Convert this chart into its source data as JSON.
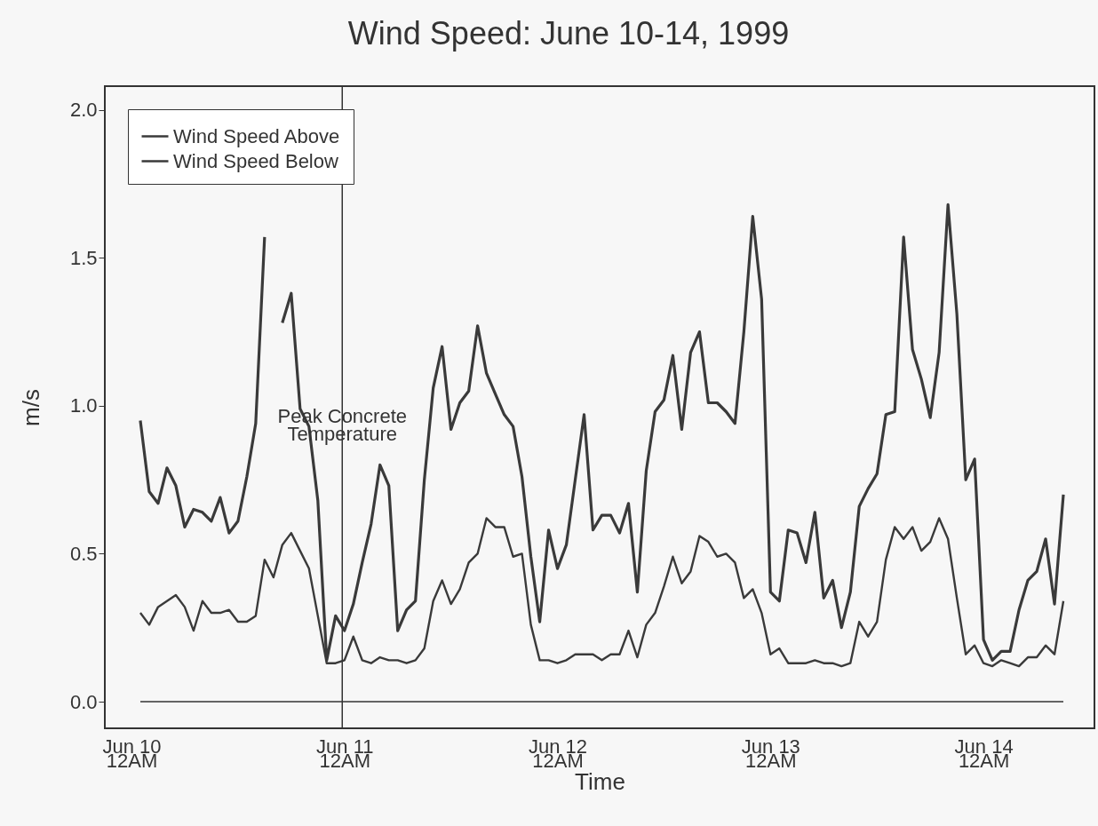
{
  "chart_data": {
    "type": "line",
    "title": "Wind Speed: June 10-14, 1999",
    "xlabel": "Time",
    "ylabel": "m/s",
    "legend": "top left",
    "x": [
      "1999-06-10T01:00",
      "1999-06-10T02:00",
      "1999-06-10T03:00",
      "1999-06-10T04:00",
      "1999-06-10T05:00",
      "1999-06-10T06:00",
      "1999-06-10T07:00",
      "1999-06-10T08:00",
      "1999-06-10T09:00",
      "1999-06-10T10:00",
      "1999-06-10T11:00",
      "1999-06-10T12:00",
      "1999-06-10T13:00",
      "1999-06-10T14:00",
      "1999-06-10T15:00",
      "1999-06-10T16:00",
      "1999-06-10T17:00",
      "1999-06-10T18:00",
      "1999-06-10T19:00",
      "1999-06-10T20:00",
      "1999-06-10T21:00",
      "1999-06-10T22:00",
      "1999-06-10T23:00",
      "1999-06-11T00:00",
      "1999-06-11T01:00",
      "1999-06-11T02:00",
      "1999-06-11T03:00",
      "1999-06-11T04:00",
      "1999-06-11T05:00",
      "1999-06-11T06:00",
      "1999-06-11T07:00",
      "1999-06-11T08:00",
      "1999-06-11T09:00",
      "1999-06-11T10:00",
      "1999-06-11T11:00",
      "1999-06-11T12:00",
      "1999-06-11T13:00",
      "1999-06-11T14:00",
      "1999-06-11T15:00",
      "1999-06-11T16:00",
      "1999-06-11T17:00",
      "1999-06-11T18:00",
      "1999-06-11T19:00",
      "1999-06-11T20:00",
      "1999-06-11T21:00",
      "1999-06-11T22:00",
      "1999-06-11T23:00",
      "1999-06-12T00:00",
      "1999-06-12T01:00",
      "1999-06-12T02:00",
      "1999-06-12T03:00",
      "1999-06-12T04:00",
      "1999-06-12T05:00",
      "1999-06-12T06:00",
      "1999-06-12T07:00",
      "1999-06-12T08:00",
      "1999-06-12T09:00",
      "1999-06-12T10:00",
      "1999-06-12T11:00",
      "1999-06-12T12:00",
      "1999-06-12T13:00",
      "1999-06-12T14:00",
      "1999-06-12T15:00",
      "1999-06-12T16:00",
      "1999-06-12T17:00",
      "1999-06-12T18:00",
      "1999-06-12T19:00",
      "1999-06-12T20:00",
      "1999-06-12T21:00",
      "1999-06-12T22:00",
      "1999-06-12T23:00",
      "1999-06-13T00:00",
      "1999-06-13T01:00",
      "1999-06-13T02:00",
      "1999-06-13T03:00",
      "1999-06-13T04:00",
      "1999-06-13T05:00",
      "1999-06-13T06:00",
      "1999-06-13T07:00",
      "1999-06-13T08:00",
      "1999-06-13T09:00",
      "1999-06-13T10:00",
      "1999-06-13T11:00",
      "1999-06-13T12:00",
      "1999-06-13T13:00",
      "1999-06-13T14:00",
      "1999-06-13T15:00",
      "1999-06-13T16:00",
      "1999-06-13T17:00",
      "1999-06-13T18:00",
      "1999-06-13T19:00",
      "1999-06-13T20:00",
      "1999-06-13T21:00",
      "1999-06-13T22:00",
      "1999-06-13T23:00",
      "1999-06-14T00:00",
      "1999-06-14T01:00",
      "1999-06-14T02:00",
      "1999-06-14T03:00",
      "1999-06-14T04:00",
      "1999-06-14T05:00",
      "1999-06-14T06:00",
      "1999-06-14T07:00",
      "1999-06-14T08:00",
      "1999-06-14T09:00"
    ],
    "series": [
      {
        "name": "Wind Speed Above",
        "color": "#3a3a3a",
        "values": [
          0.95,
          0.71,
          0.67,
          0.79,
          0.73,
          0.59,
          0.65,
          0.64,
          0.61,
          0.69,
          0.57,
          0.61,
          0.76,
          0.94,
          1.57,
          null,
          1.28,
          1.38,
          0.99,
          0.93,
          0.68,
          0.14,
          0.29,
          0.24,
          0.33,
          0.47,
          0.6,
          0.8,
          0.73,
          0.24,
          0.31,
          0.34,
          0.75,
          1.06,
          1.2,
          0.92,
          1.01,
          1.05,
          1.27,
          1.11,
          1.04,
          0.97,
          0.93,
          0.76,
          0.49,
          0.27,
          0.58,
          0.45,
          0.53,
          0.75,
          0.97,
          0.58,
          0.63,
          0.63,
          0.57,
          0.67,
          0.37,
          0.78,
          0.98,
          1.02,
          1.17,
          0.92,
          1.18,
          1.25,
          1.01,
          1.01,
          0.98,
          0.94,
          1.25,
          1.64,
          1.36,
          0.37,
          0.34,
          0.58,
          0.57,
          0.47,
          0.64,
          0.35,
          0.41,
          0.25,
          0.37,
          0.66,
          0.72,
          0.77,
          0.97,
          0.98,
          1.57,
          1.19,
          1.09,
          0.96,
          1.18,
          1.68,
          1.31,
          0.75,
          0.82,
          0.21,
          0.14,
          0.17,
          0.17,
          0.31,
          0.41,
          0.44,
          0.55,
          0.33,
          0.7
        ]
      },
      {
        "name": "Wind Speed Below",
        "color": "#3a3a3a",
        "values": [
          0.3,
          0.26,
          0.32,
          0.34,
          0.36,
          0.32,
          0.24,
          0.34,
          0.3,
          0.3,
          0.31,
          0.27,
          0.27,
          0.29,
          0.48,
          0.42,
          0.53,
          0.57,
          0.51,
          0.45,
          0.29,
          0.13,
          0.13,
          0.14,
          0.22,
          0.14,
          0.13,
          0.15,
          0.14,
          0.14,
          0.13,
          0.14,
          0.18,
          0.34,
          0.41,
          0.33,
          0.38,
          0.47,
          0.5,
          0.62,
          0.59,
          0.59,
          0.49,
          0.5,
          0.26,
          0.14,
          0.14,
          0.13,
          0.14,
          0.16,
          0.16,
          0.16,
          0.14,
          0.16,
          0.16,
          0.24,
          0.15,
          0.26,
          0.3,
          0.39,
          0.49,
          0.4,
          0.44,
          0.56,
          0.54,
          0.49,
          0.5,
          0.47,
          0.35,
          0.38,
          0.3,
          0.16,
          0.18,
          0.13,
          0.13,
          0.13,
          0.14,
          0.13,
          0.13,
          0.12,
          0.13,
          0.27,
          0.22,
          0.27,
          0.48,
          0.59,
          0.55,
          0.59,
          0.51,
          0.54,
          0.62,
          0.55,
          0.35,
          0.16,
          0.19,
          0.13,
          0.12,
          0.14,
          0.13,
          0.12,
          0.15,
          0.15,
          0.19,
          0.16,
          0.34
        ]
      }
    ],
    "xlim": [
      "1999-06-09T21:00",
      "1999-06-14T12:30"
    ],
    "xticks": [
      {
        "value": "1999-06-10T00:00",
        "label": "Jun 10\n12AM"
      },
      {
        "value": "1999-06-11T00:00",
        "label": "Jun 11\n12AM"
      },
      {
        "value": "1999-06-12T00:00",
        "label": "Jun 12\n12AM"
      },
      {
        "value": "1999-06-13T00:00",
        "label": "Jun 13\n12AM"
      },
      {
        "value": "1999-06-14T00:00",
        "label": "Jun 14\n12AM"
      }
    ],
    "ylim": [
      -0.09,
      2.08
    ],
    "yticks": [
      {
        "value": 0,
        "label": "0.0"
      },
      {
        "value": 0.5,
        "label": "0.5"
      },
      {
        "value": 1,
        "label": "1.0"
      },
      {
        "value": 1.5,
        "label": "1.5"
      },
      {
        "value": 2,
        "label": "2.0"
      }
    ],
    "ref_lines": [
      {
        "axis": "x",
        "value": "1999-06-10T23:45",
        "label": "Peak Concrete\nTemperature"
      },
      {
        "axis": "y",
        "value": 0
      }
    ]
  }
}
